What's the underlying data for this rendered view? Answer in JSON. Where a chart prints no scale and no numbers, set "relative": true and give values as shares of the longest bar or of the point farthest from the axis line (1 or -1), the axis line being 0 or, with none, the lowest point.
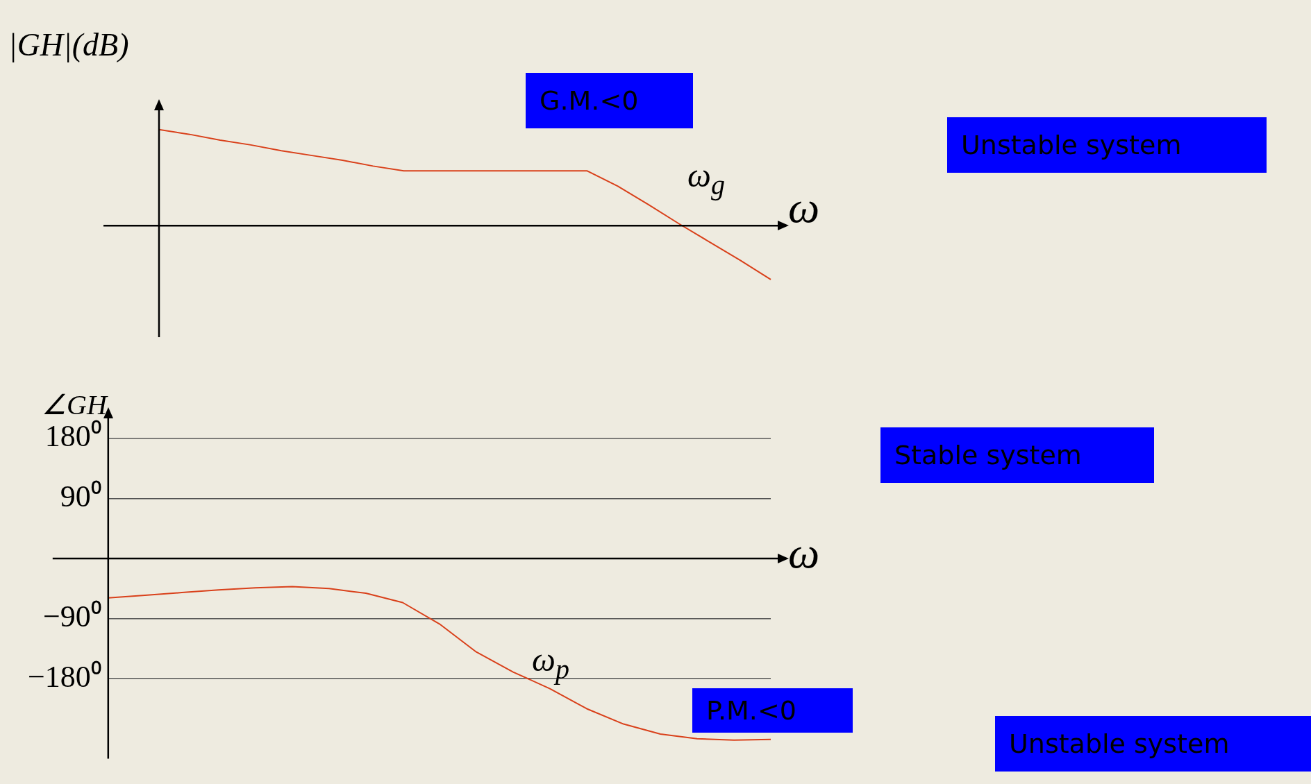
{
  "chart_data": [
    {
      "type": "line",
      "relative": true,
      "ylabel": "|GH|(dB)",
      "xlabel": "ω",
      "categories": [
        null,
        null,
        null,
        null,
        null,
        null,
        null,
        null,
        null,
        null,
        null,
        null,
        null,
        null,
        null,
        null,
        null,
        null,
        null,
        null,
        null
      ],
      "series": [
        {
          "color": "#d9401a",
          "values": [
            1,
            0.95,
            0.89,
            0.84,
            0.78,
            0.73,
            0.68,
            0.62,
            0.57,
            0.57,
            0.57,
            0.57,
            0.57,
            0.57,
            0.57,
            0.41,
            0.22,
            0.02,
            -0.17,
            -0.36,
            -0.56
          ]
        }
      ],
      "marker": "none",
      "tick_labels": false,
      "annotations": [
        "ω$_{g}$",
        "G.M.<0",
        "Unstable system",
        "Stable system"
      ]
    },
    {
      "type": "line",
      "ylabel": "∠GH",
      "xlabel": "ω",
      "categories": [
        null,
        null,
        null,
        null,
        null,
        null,
        null,
        null,
        null,
        null,
        null,
        null,
        null,
        null,
        null,
        null,
        null,
        null,
        null
      ],
      "series": [
        {
          "color": "#d9401a",
          "values": [
            -59,
            -55,
            -51,
            -47,
            -44,
            -42,
            -45,
            -52,
            -66,
            -98,
            -140,
            -170,
            -195,
            -225,
            -248,
            -263,
            -270,
            -272,
            -271
          ]
        }
      ],
      "ylim": [
        -300,
        210
      ],
      "yticks": [
        {
          "value": 180,
          "label": "180⁰"
        },
        {
          "value": 90,
          "label": "90⁰"
        },
        {
          "value": -90,
          "label": "−90⁰"
        },
        {
          "value": -180,
          "label": "−180⁰"
        }
      ],
      "grid": "y",
      "marker": "none",
      "tick_labels": "y",
      "annotations": [
        "ω$_{p}$",
        "P.M.<0",
        "Unstable system"
      ]
    }
  ]
}
